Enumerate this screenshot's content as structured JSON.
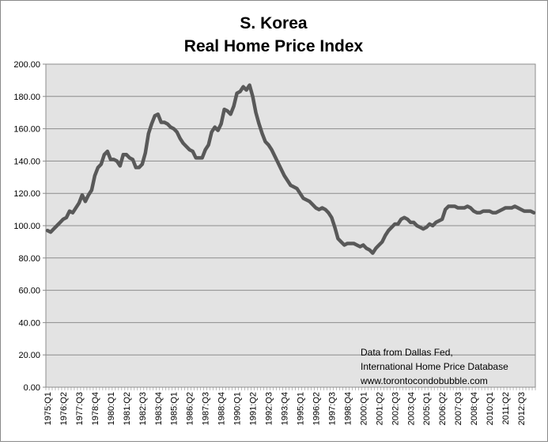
{
  "chart_data": {
    "type": "line",
    "title": "S. Korea",
    "subtitle": "Real Home Price Index",
    "xlabel": "",
    "ylabel": "",
    "ylim": [
      0,
      200
    ],
    "yticks": [
      "0.00",
      "20.00",
      "40.00",
      "60.00",
      "80.00",
      "100.00",
      "120.00",
      "140.00",
      "160.00",
      "180.00",
      "200.00"
    ],
    "xticks": [
      "1975:Q1",
      "1976:Q2",
      "1977:Q3",
      "1978:Q4",
      "1980:Q1",
      "1981:Q2",
      "1982:Q3",
      "1983:Q4",
      "1985:Q1",
      "1986:Q2",
      "1987:Q3",
      "1988:Q4",
      "1990:Q1",
      "1991:Q2",
      "1992:Q3",
      "1993:Q4",
      "1995:Q1",
      "1996:Q2",
      "1997:Q3",
      "1998:Q4",
      "2000:Q1",
      "2001:Q2",
      "2002:Q3",
      "2003:Q4",
      "2005:Q1",
      "2006:Q2",
      "2007:Q3",
      "2008:Q4",
      "2010:Q1",
      "2011:Q2",
      "2012:Q3"
    ],
    "grid": true,
    "legend": "none",
    "colors": {
      "line": "#595959",
      "plot_bg": "#e3e3e3",
      "grid": "#8c8c8c"
    },
    "annotations": [
      "Data from Dallas Fed,",
      "International Home Price Database",
      "www.torontocondobubble.com"
    ],
    "series": [
      {
        "values": [
          97,
          96,
          98,
          100,
          102,
          104,
          105,
          109,
          108,
          111,
          114,
          119,
          115,
          119,
          122,
          131,
          136,
          138,
          144,
          146,
          141,
          141,
          140,
          137,
          144,
          144,
          142,
          141,
          136,
          136,
          138,
          145,
          157,
          163,
          168,
          169,
          164,
          164,
          163,
          161,
          160,
          158,
          154,
          151,
          149,
          147,
          146,
          142,
          142,
          142,
          147,
          150,
          158,
          161,
          159,
          163,
          172,
          171,
          169,
          174,
          182,
          183,
          186,
          184,
          187,
          180,
          170,
          163,
          157,
          152,
          150,
          147,
          143,
          139,
          135,
          131,
          128,
          125,
          124,
          123,
          120,
          117,
          116,
          115,
          113,
          111,
          110,
          111,
          110,
          108,
          105,
          99,
          92,
          90,
          88,
          89,
          89,
          89,
          88,
          87,
          88,
          86,
          85,
          83,
          86,
          88,
          90,
          94,
          97,
          99,
          101,
          101,
          104,
          105,
          104,
          102,
          102,
          100,
          99,
          98,
          99,
          101,
          100,
          102,
          103,
          104,
          110,
          112,
          112,
          112,
          111,
          111,
          111,
          112,
          111,
          109,
          108,
          108,
          109,
          109,
          109,
          108,
          108,
          109,
          110,
          111,
          111,
          111,
          112,
          111,
          110,
          109,
          109,
          109,
          108
        ]
      }
    ]
  }
}
